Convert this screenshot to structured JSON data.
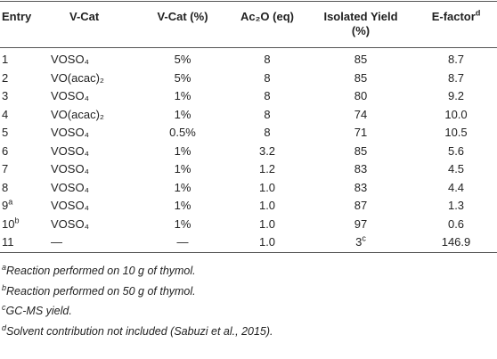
{
  "table": {
    "header": [
      {
        "text": "Entry"
      },
      {
        "text": "V-Cat"
      },
      {
        "text": "V-Cat (%)"
      },
      {
        "text": "Ac₂O (eq)"
      },
      {
        "text": "Isolated Yield",
        "line2": "(%)"
      },
      {
        "text": "E-factor",
        "sup": "d"
      }
    ],
    "rows": [
      [
        {
          "text": "1"
        },
        {
          "text": "VOSO₄"
        },
        {
          "text": "5%"
        },
        {
          "text": "8"
        },
        {
          "text": "85"
        },
        {
          "text": "8.7"
        }
      ],
      [
        {
          "text": "2"
        },
        {
          "text": "VO(acac)₂"
        },
        {
          "text": "5%"
        },
        {
          "text": "8"
        },
        {
          "text": "85"
        },
        {
          "text": "8.7"
        }
      ],
      [
        {
          "text": "3"
        },
        {
          "text": "VOSO₄"
        },
        {
          "text": "1%"
        },
        {
          "text": "8"
        },
        {
          "text": "80"
        },
        {
          "text": "9.2"
        }
      ],
      [
        {
          "text": "4"
        },
        {
          "text": "VO(acac)₂"
        },
        {
          "text": "1%"
        },
        {
          "text": "8"
        },
        {
          "text": "74"
        },
        {
          "text": "10.0"
        }
      ],
      [
        {
          "text": "5"
        },
        {
          "text": "VOSO₄"
        },
        {
          "text": "0.5%"
        },
        {
          "text": "8"
        },
        {
          "text": "71"
        },
        {
          "text": "10.5"
        }
      ],
      [
        {
          "text": "6"
        },
        {
          "text": "VOSO₄"
        },
        {
          "text": "1%"
        },
        {
          "text": "3.2"
        },
        {
          "text": "85"
        },
        {
          "text": "5.6"
        }
      ],
      [
        {
          "text": "7"
        },
        {
          "text": "VOSO₄"
        },
        {
          "text": "1%"
        },
        {
          "text": "1.2"
        },
        {
          "text": "83"
        },
        {
          "text": "4.5"
        }
      ],
      [
        {
          "text": "8"
        },
        {
          "text": "VOSO₄"
        },
        {
          "text": "1%"
        },
        {
          "text": "1.0"
        },
        {
          "text": "83"
        },
        {
          "text": "4.4"
        }
      ],
      [
        {
          "text": "9",
          "sup": "a"
        },
        {
          "text": "VOSO₄"
        },
        {
          "text": "1%"
        },
        {
          "text": "1.0"
        },
        {
          "text": "87"
        },
        {
          "text": "1.3"
        }
      ],
      [
        {
          "text": "10",
          "sup": "b"
        },
        {
          "text": "VOSO₄"
        },
        {
          "text": "1%"
        },
        {
          "text": "1.0"
        },
        {
          "text": "97"
        },
        {
          "text": "0.6"
        }
      ],
      [
        {
          "text": "11"
        },
        {
          "text": "—"
        },
        {
          "text": "—"
        },
        {
          "text": "1.0"
        },
        {
          "text": "3",
          "sup": "c"
        },
        {
          "text": "146.9"
        }
      ]
    ],
    "footnotes": [
      {
        "mark": "a",
        "text": "Reaction performed on 10 g of thymol."
      },
      {
        "mark": "b",
        "text": "Reaction performed on 50 g of thymol."
      },
      {
        "mark": "c",
        "text": "GC-MS yield."
      },
      {
        "mark": "d",
        "text": "Solvent contribution not included (Sabuzi et al., 2015)."
      }
    ]
  }
}
